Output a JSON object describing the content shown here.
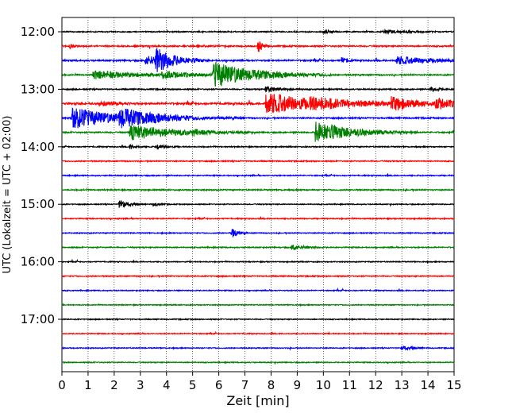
{
  "chart_data": {
    "type": "line",
    "title": "",
    "xlabel": "Zeit  [min]",
    "ylabel": "UTC (Lokalzeit = UTC + 02:00)",
    "xlim": [
      0,
      15
    ],
    "x_ticks": [
      "0",
      "1",
      "2",
      "3",
      "4",
      "5",
      "6",
      "7",
      "8",
      "9",
      "10",
      "11",
      "12",
      "13",
      "14",
      "15"
    ],
    "y_tick_labels": [
      "12:00",
      "13:00",
      "14:00",
      "15:00",
      "16:00",
      "17:00"
    ],
    "grid": "vertical-dotted",
    "trace_colors": [
      "#000000",
      "#ff0000",
      "#0000ff",
      "#008000"
    ],
    "row_start_times": [
      "12:00",
      "12:15",
      "12:30",
      "12:45",
      "13:00",
      "13:15",
      "13:30",
      "13:45",
      "14:00",
      "14:15",
      "14:30",
      "14:45",
      "15:00",
      "15:15",
      "15:30",
      "15:45",
      "16:00",
      "16:15",
      "16:30",
      "16:45",
      "17:00",
      "17:15",
      "17:30",
      "17:45"
    ],
    "base_noise": [
      0.8,
      1.0,
      1.1,
      1.0,
      0.9,
      1.4,
      1.0,
      1.0,
      0.8,
      0.8,
      0.8,
      0.9,
      0.7,
      0.8,
      0.7,
      0.8,
      0.7,
      0.8,
      0.7,
      0.7,
      0.7,
      0.7,
      0.7,
      0.7
    ],
    "events": [
      {
        "row": 0,
        "t": 10.0,
        "amp": 3,
        "dur": 0.2
      },
      {
        "row": 0,
        "t": 12.3,
        "amp": 2,
        "dur": 0.8
      },
      {
        "row": 1,
        "t": 7.5,
        "amp": 9,
        "dur": 0.15
      },
      {
        "row": 1,
        "t": 0.3,
        "amp": 3,
        "dur": 0.1
      },
      {
        "row": 2,
        "t": 3.2,
        "amp": 6,
        "dur": 0.8
      },
      {
        "row": 2,
        "t": 3.6,
        "amp": 14,
        "dur": 0.6
      },
      {
        "row": 2,
        "t": 10.7,
        "amp": 4,
        "dur": 0.2
      },
      {
        "row": 2,
        "t": 12.8,
        "amp": 5,
        "dur": 1.3
      },
      {
        "row": 3,
        "t": 1.2,
        "amp": 5,
        "dur": 1.6
      },
      {
        "row": 3,
        "t": 3.8,
        "amp": 4,
        "dur": 1.0
      },
      {
        "row": 3,
        "t": 5.8,
        "amp": 16,
        "dur": 1.5
      },
      {
        "row": 4,
        "t": 7.8,
        "amp": 4,
        "dur": 0.5
      },
      {
        "row": 4,
        "t": 14.1,
        "amp": 3,
        "dur": 0.3
      },
      {
        "row": 5,
        "t": 7.8,
        "amp": 14,
        "dur": 1.8
      },
      {
        "row": 5,
        "t": 9.5,
        "amp": 4,
        "dur": 1.5
      },
      {
        "row": 5,
        "t": 12.6,
        "amp": 8,
        "dur": 0.9
      },
      {
        "row": 5,
        "t": 14.3,
        "amp": 7,
        "dur": 0.6
      },
      {
        "row": 5,
        "t": 1.5,
        "amp": 3,
        "dur": 0.5
      },
      {
        "row": 6,
        "t": 0.4,
        "amp": 14,
        "dur": 1.5
      },
      {
        "row": 6,
        "t": 2.2,
        "amp": 9,
        "dur": 1.6
      },
      {
        "row": 7,
        "t": 2.6,
        "amp": 10,
        "dur": 1.6
      },
      {
        "row": 7,
        "t": 9.7,
        "amp": 14,
        "dur": 1.3
      },
      {
        "row": 7,
        "t": 5.0,
        "amp": 3,
        "dur": 0.2
      },
      {
        "row": 8,
        "t": 2.6,
        "amp": 3,
        "dur": 0.2
      },
      {
        "row": 8,
        "t": 3.6,
        "amp": 3,
        "dur": 0.3
      },
      {
        "row": 12,
        "t": 2.2,
        "amp": 6,
        "dur": 0.3
      },
      {
        "row": 12,
        "t": 3.5,
        "amp": 2,
        "dur": 0.2
      },
      {
        "row": 14,
        "t": 6.5,
        "amp": 7,
        "dur": 0.2
      },
      {
        "row": 15,
        "t": 8.8,
        "amp": 4,
        "dur": 0.4
      },
      {
        "row": 22,
        "t": 13.0,
        "amp": 3,
        "dur": 0.3
      }
    ]
  }
}
